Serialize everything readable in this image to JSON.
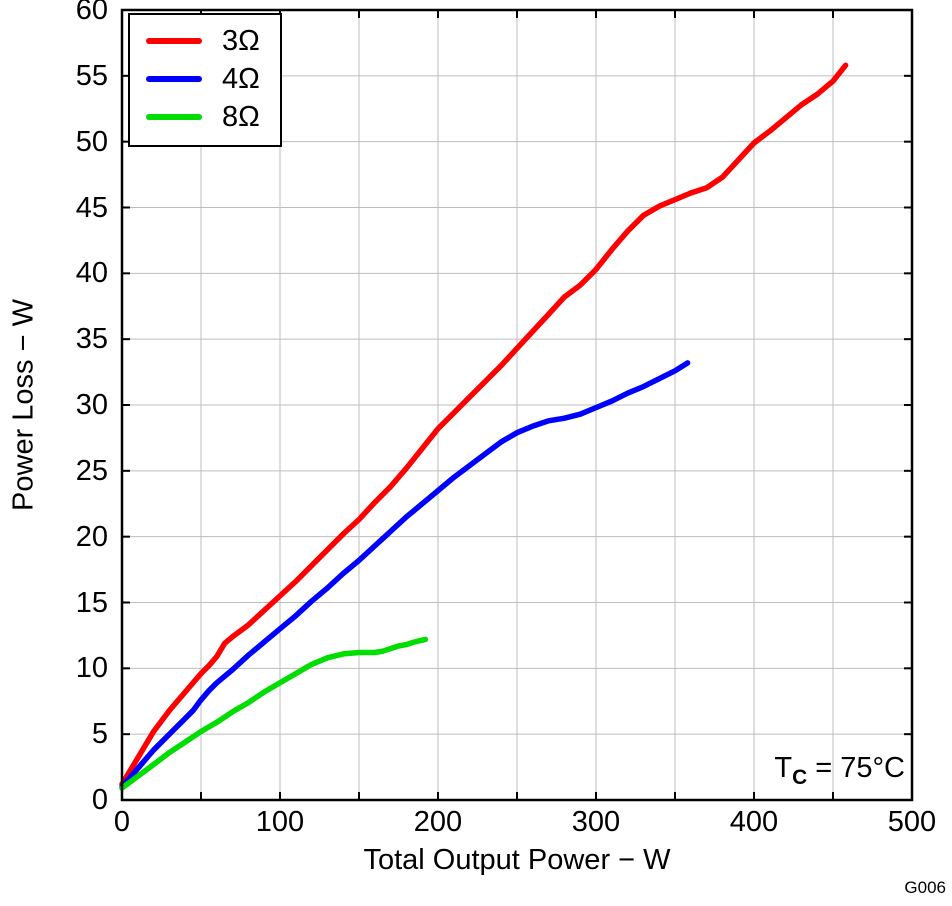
{
  "figure": {
    "id_label": "G006",
    "x_axis": {
      "title": "Total Output Power − W",
      "min": 0,
      "max": 500,
      "grid_step": 50,
      "tick_labels": [
        "0",
        "100",
        "200",
        "300",
        "400",
        "500"
      ]
    },
    "y_axis": {
      "title": "Power Loss − W",
      "min": 0,
      "max": 60,
      "grid_step": 5,
      "tick_labels": [
        "0",
        "5",
        "10",
        "15",
        "20",
        "25",
        "30",
        "35",
        "40",
        "45",
        "50",
        "55",
        "60"
      ]
    },
    "annotation": {
      "prefix": "T",
      "sub": "C",
      "suffix": " = 75°C"
    },
    "legend": [
      {
        "label": "3Ω",
        "color": "#ff0000"
      },
      {
        "label": "4Ω",
        "color": "#0000ff"
      },
      {
        "label": "8Ω",
        "color": "#00dd00"
      }
    ]
  },
  "chart_data": {
    "type": "line",
    "title": "",
    "xlabel": "Total Output Power − W",
    "ylabel": "Power Loss − W",
    "xlim": [
      0,
      500
    ],
    "ylim": [
      0,
      60
    ],
    "grid": true,
    "legend_position": "top-left",
    "condition": "TC = 75°C",
    "series": [
      {
        "name": "3Ω",
        "color": "#ff0000",
        "points": [
          [
            0,
            1.2
          ],
          [
            5,
            2.2
          ],
          [
            10,
            3.2
          ],
          [
            15,
            4.2
          ],
          [
            20,
            5.2
          ],
          [
            30,
            6.8
          ],
          [
            40,
            8.2
          ],
          [
            50,
            9.6
          ],
          [
            55,
            10.2
          ],
          [
            60,
            10.9
          ],
          [
            65,
            11.9
          ],
          [
            70,
            12.4
          ],
          [
            80,
            13.3
          ],
          [
            90,
            14.4
          ],
          [
            100,
            15.5
          ],
          [
            110,
            16.6
          ],
          [
            120,
            17.8
          ],
          [
            130,
            19.0
          ],
          [
            140,
            20.2
          ],
          [
            150,
            21.3
          ],
          [
            160,
            22.6
          ],
          [
            170,
            23.8
          ],
          [
            180,
            25.2
          ],
          [
            190,
            26.7
          ],
          [
            200,
            28.2
          ],
          [
            210,
            29.4
          ],
          [
            220,
            30.6
          ],
          [
            230,
            31.8
          ],
          [
            240,
            33.0
          ],
          [
            250,
            34.3
          ],
          [
            260,
            35.6
          ],
          [
            270,
            36.9
          ],
          [
            280,
            38.2
          ],
          [
            290,
            39.1
          ],
          [
            300,
            40.3
          ],
          [
            310,
            41.8
          ],
          [
            320,
            43.2
          ],
          [
            330,
            44.4
          ],
          [
            340,
            45.1
          ],
          [
            350,
            45.6
          ],
          [
            360,
            46.1
          ],
          [
            370,
            46.5
          ],
          [
            380,
            47.3
          ],
          [
            390,
            48.6
          ],
          [
            400,
            49.9
          ],
          [
            410,
            50.8
          ],
          [
            420,
            51.8
          ],
          [
            430,
            52.8
          ],
          [
            440,
            53.6
          ],
          [
            450,
            54.6
          ],
          [
            458,
            55.8
          ]
        ]
      },
      {
        "name": "4Ω",
        "color": "#0000ff",
        "points": [
          [
            0,
            1.0
          ],
          [
            10,
            2.4
          ],
          [
            20,
            3.8
          ],
          [
            30,
            5.0
          ],
          [
            40,
            6.2
          ],
          [
            45,
            6.8
          ],
          [
            50,
            7.6
          ],
          [
            55,
            8.3
          ],
          [
            60,
            8.9
          ],
          [
            70,
            9.9
          ],
          [
            80,
            11.0
          ],
          [
            90,
            12.0
          ],
          [
            100,
            13.0
          ],
          [
            110,
            14.0
          ],
          [
            120,
            15.1
          ],
          [
            130,
            16.1
          ],
          [
            140,
            17.2
          ],
          [
            150,
            18.2
          ],
          [
            160,
            19.3
          ],
          [
            170,
            20.4
          ],
          [
            180,
            21.5
          ],
          [
            190,
            22.5
          ],
          [
            200,
            23.5
          ],
          [
            210,
            24.5
          ],
          [
            220,
            25.4
          ],
          [
            230,
            26.3
          ],
          [
            240,
            27.2
          ],
          [
            250,
            27.9
          ],
          [
            260,
            28.4
          ],
          [
            270,
            28.8
          ],
          [
            280,
            29.0
          ],
          [
            290,
            29.3
          ],
          [
            300,
            29.8
          ],
          [
            310,
            30.3
          ],
          [
            320,
            30.9
          ],
          [
            330,
            31.4
          ],
          [
            340,
            32.0
          ],
          [
            350,
            32.6
          ],
          [
            358,
            33.2
          ]
        ]
      },
      {
        "name": "8Ω",
        "color": "#00dd00",
        "points": [
          [
            0,
            0.9
          ],
          [
            10,
            1.8
          ],
          [
            20,
            2.7
          ],
          [
            30,
            3.6
          ],
          [
            40,
            4.4
          ],
          [
            50,
            5.2
          ],
          [
            60,
            5.9
          ],
          [
            70,
            6.7
          ],
          [
            80,
            7.4
          ],
          [
            90,
            8.2
          ],
          [
            100,
            8.9
          ],
          [
            110,
            9.6
          ],
          [
            120,
            10.3
          ],
          [
            130,
            10.8
          ],
          [
            140,
            11.1
          ],
          [
            150,
            11.2
          ],
          [
            160,
            11.2
          ],
          [
            165,
            11.3
          ],
          [
            170,
            11.5
          ],
          [
            175,
            11.7
          ],
          [
            180,
            11.8
          ],
          [
            185,
            12.0
          ],
          [
            192,
            12.2
          ]
        ]
      }
    ]
  }
}
